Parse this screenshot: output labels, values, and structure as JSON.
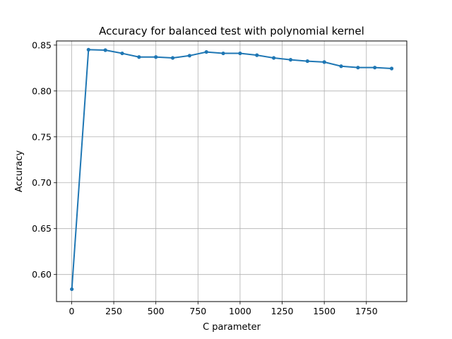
{
  "chart_data": {
    "type": "line",
    "title": "Accuracy for balanced test with polynomial kernel",
    "xlabel": "C parameter",
    "ylabel": "Accuracy",
    "grid": true,
    "legend": "none",
    "xlim": [
      -90,
      1990
    ],
    "ylim": [
      0.5705,
      0.8545
    ],
    "xticks": [
      0,
      250,
      500,
      750,
      1000,
      1250,
      1500,
      1750
    ],
    "xtick_labels": [
      "0",
      "250",
      "500",
      "750",
      "1000",
      "1250",
      "1500",
      "1750"
    ],
    "yticks": [
      0.6,
      0.65,
      0.7,
      0.75,
      0.8,
      0.85
    ],
    "ytick_labels": [
      "0.60",
      "0.65",
      "0.70",
      "0.75",
      "0.80",
      "0.85"
    ],
    "series": [
      {
        "color": "#1f77b4",
        "marker": "circle",
        "x": [
          1,
          100,
          200,
          300,
          400,
          500,
          600,
          700,
          800,
          900,
          1000,
          1100,
          1200,
          1300,
          1400,
          1500,
          1600,
          1700,
          1800,
          1900
        ],
        "y": [
          0.584,
          0.845,
          0.8445,
          0.841,
          0.837,
          0.837,
          0.836,
          0.8385,
          0.8425,
          0.841,
          0.841,
          0.839,
          0.836,
          0.834,
          0.8325,
          0.8315,
          0.827,
          0.8255,
          0.8255,
          0.8245
        ]
      }
    ]
  }
}
